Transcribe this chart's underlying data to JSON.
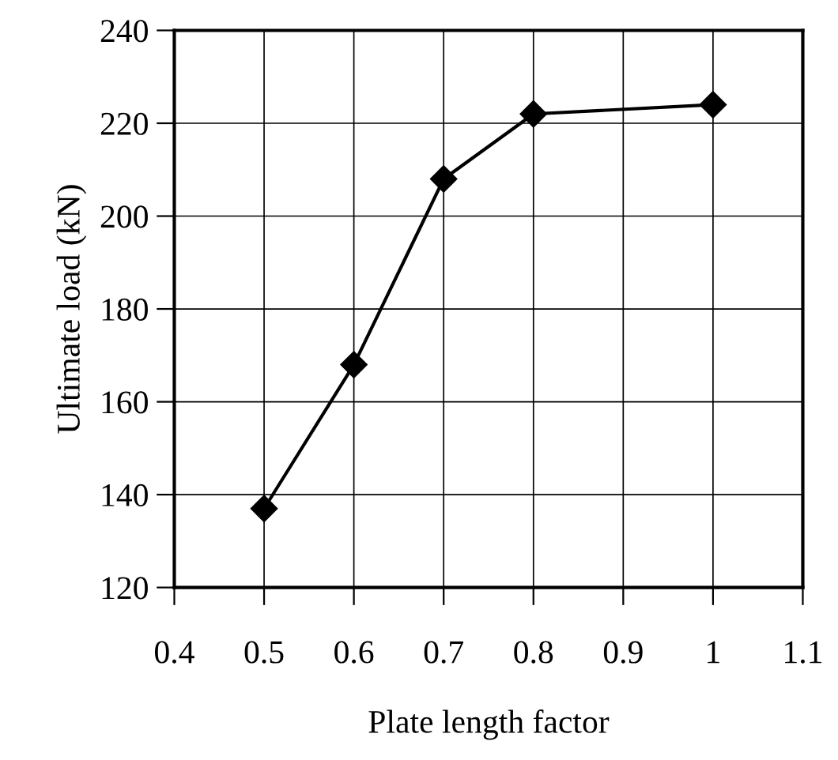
{
  "chart_data": {
    "type": "line",
    "xlabel": "Plate length factor",
    "ylabel": "Ultimate load (kN)",
    "x": [
      0.5,
      0.6,
      0.7,
      0.8,
      1.0
    ],
    "series": [
      {
        "color": "#000000",
        "values": [
          137,
          168,
          208,
          222,
          224
        ]
      }
    ],
    "xlim": [
      0.4,
      1.1
    ],
    "xticks": [
      0.4,
      0.5,
      0.6,
      0.7,
      0.8,
      0.9,
      {
        "value": 1.0,
        "label": "1"
      },
      1.1
    ],
    "ylim": [
      120,
      240
    ],
    "yticks": [
      120,
      140,
      160,
      180,
      200,
      220,
      240
    ],
    "grid": true,
    "marker": "diamond",
    "line_style": "solid"
  }
}
